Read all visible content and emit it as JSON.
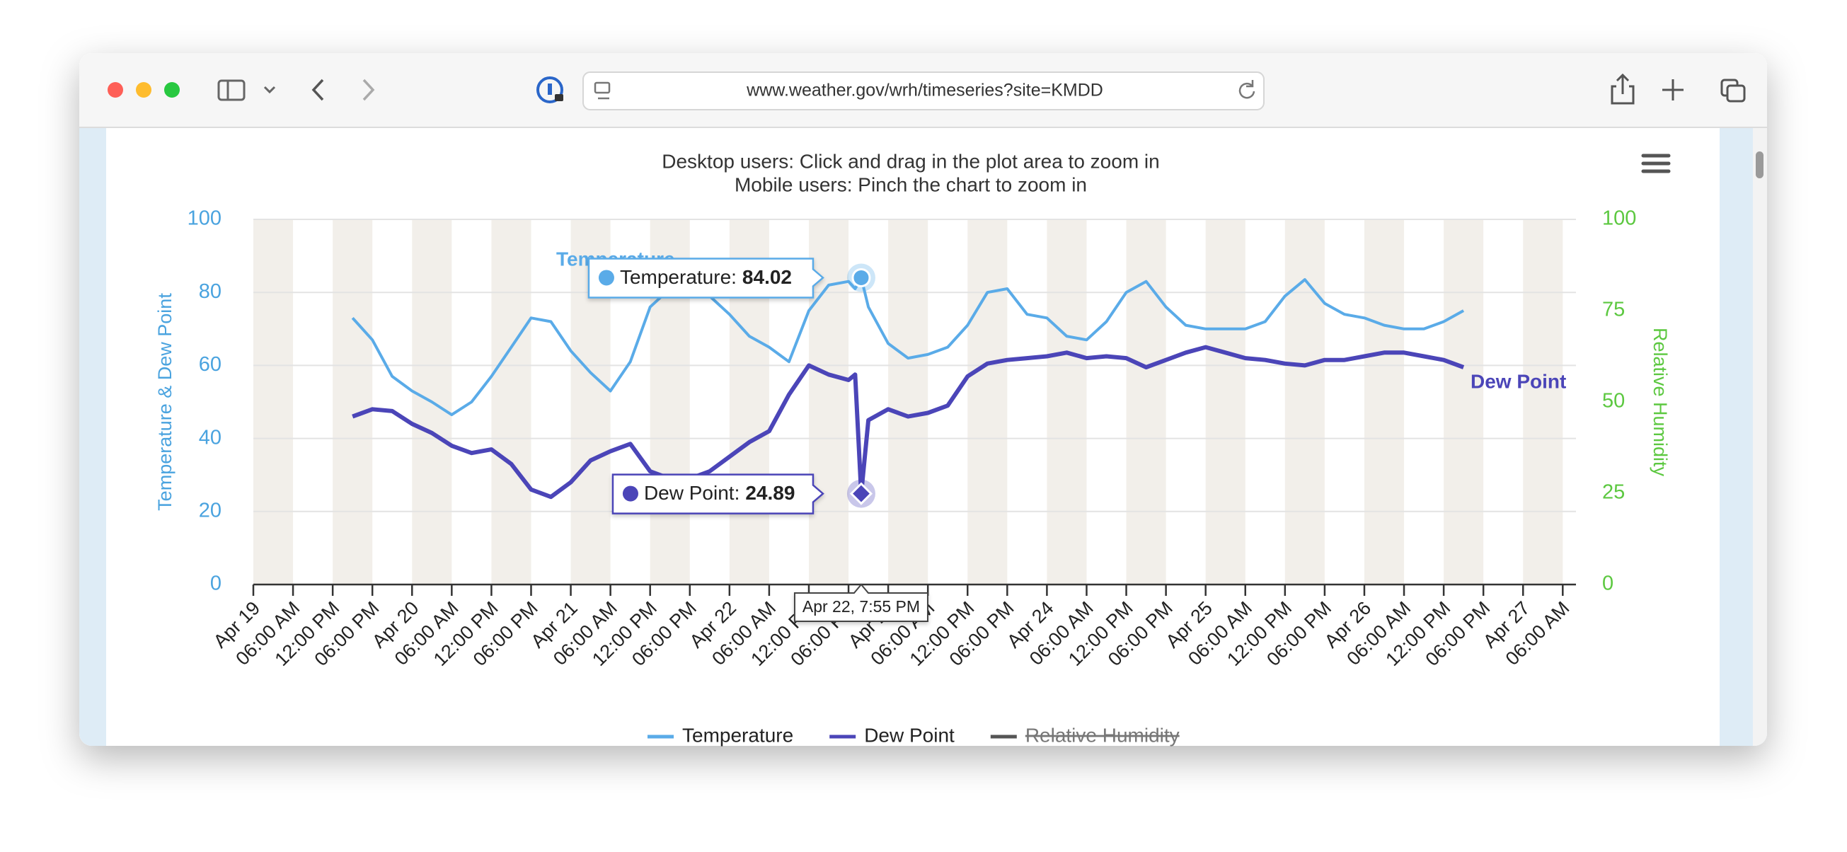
{
  "browser": {
    "url": "www.weather.gov/wrh/timeseries?site=KMDD"
  },
  "chart_data": {
    "type": "line",
    "subtitle": [
      "Desktop users: Click and drag in the plot area to zoom in",
      "Mobile users: Pinch the chart to zoom in"
    ],
    "ylabel": "Temperature & Dew Point",
    "y2label": "Relative Humidity",
    "xlim": [
      "Apr 19, 12:00 AM",
      "Apr 27, 8:00 AM"
    ],
    "ylim": [
      0,
      100
    ],
    "yticks": [
      0,
      20,
      40,
      60,
      80,
      100
    ],
    "y2lim": [
      0,
      100
    ],
    "y2ticks": [
      0,
      25,
      50,
      75,
      100
    ],
    "grid": true,
    "xticks": [
      {
        "value": "Apr 19, 12:00 AM",
        "label": "Apr 19"
      },
      {
        "value": "Apr 19, 6:00 AM",
        "label": "06:00 AM"
      },
      {
        "value": "Apr 19, 12:00 PM",
        "label": "12:00 PM"
      },
      {
        "value": "Apr 19, 6:00 PM",
        "label": "06:00 PM"
      },
      {
        "value": "Apr 20, 12:00 AM",
        "label": "Apr 20"
      },
      {
        "value": "Apr 20, 6:00 AM",
        "label": "06:00 AM"
      },
      {
        "value": "Apr 20, 12:00 PM",
        "label": "12:00 PM"
      },
      {
        "value": "Apr 20, 6:00 PM",
        "label": "06:00 PM"
      },
      {
        "value": "Apr 21, 12:00 AM",
        "label": "Apr 21"
      },
      {
        "value": "Apr 21, 6:00 AM",
        "label": "06:00 AM"
      },
      {
        "value": "Apr 21, 12:00 PM",
        "label": "12:00 PM"
      },
      {
        "value": "Apr 21, 6:00 PM",
        "label": "06:00 PM"
      },
      {
        "value": "Apr 22, 12:00 AM",
        "label": "Apr 22"
      },
      {
        "value": "Apr 22, 6:00 AM",
        "label": "06:00 AM"
      },
      {
        "value": "Apr 22, 12:00 PM",
        "label": "12:00 PM"
      },
      {
        "value": "Apr 22, 6:00 PM",
        "label": "06:00 PM"
      },
      {
        "value": "Apr 23, 12:00 AM",
        "label": "Apr 23"
      },
      {
        "value": "Apr 23, 6:00 AM",
        "label": "06:00 AM"
      },
      {
        "value": "Apr 23, 12:00 PM",
        "label": "12:00 PM"
      },
      {
        "value": "Apr 23, 6:00 PM",
        "label": "06:00 PM"
      },
      {
        "value": "Apr 24, 12:00 AM",
        "label": "Apr 24"
      },
      {
        "value": "Apr 24, 6:00 AM",
        "label": "06:00 AM"
      },
      {
        "value": "Apr 24, 12:00 PM",
        "label": "12:00 PM"
      },
      {
        "value": "Apr 24, 6:00 PM",
        "label": "06:00 PM"
      },
      {
        "value": "Apr 25, 12:00 AM",
        "label": "Apr 25"
      },
      {
        "value": "Apr 25, 6:00 AM",
        "label": "06:00 AM"
      },
      {
        "value": "Apr 25, 12:00 PM",
        "label": "12:00 PM"
      },
      {
        "value": "Apr 25, 6:00 PM",
        "label": "06:00 PM"
      },
      {
        "value": "Apr 26, 12:00 AM",
        "label": "Apr 26"
      },
      {
        "value": "Apr 26, 6:00 AM",
        "label": "06:00 AM"
      },
      {
        "value": "Apr 26, 12:00 PM",
        "label": "12:00 PM"
      },
      {
        "value": "Apr 26, 6:00 PM",
        "label": "06:00 PM"
      },
      {
        "value": "Apr 27, 12:00 AM",
        "label": "Apr 27"
      },
      {
        "value": "Apr 27, 6:00 AM",
        "label": "06:00 AM"
      }
    ],
    "x": [
      "Apr 19, 3:00 PM",
      "Apr 19, 6:00 PM",
      "Apr 19, 9:00 PM",
      "Apr 20, 12:00 AM",
      "Apr 20, 3:00 AM",
      "Apr 20, 6:00 AM",
      "Apr 20, 9:00 AM",
      "Apr 20, 12:00 PM",
      "Apr 20, 3:00 PM",
      "Apr 20, 6:00 PM",
      "Apr 20, 9:00 PM",
      "Apr 21, 12:00 AM",
      "Apr 21, 3:00 AM",
      "Apr 21, 6:00 AM",
      "Apr 21, 9:00 AM",
      "Apr 21, 12:00 PM",
      "Apr 21, 3:00 PM",
      "Apr 21, 6:00 PM",
      "Apr 21, 9:00 PM",
      "Apr 22, 12:00 AM",
      "Apr 22, 3:00 AM",
      "Apr 22, 6:00 AM",
      "Apr 22, 9:00 AM",
      "Apr 22, 12:00 PM",
      "Apr 22, 3:00 PM",
      "Apr 22, 6:00 PM",
      "Apr 22, 7:00 PM",
      "Apr 22, 7:55 PM",
      "Apr 22, 9:00 PM",
      "Apr 23, 12:00 AM",
      "Apr 23, 3:00 AM",
      "Apr 23, 6:00 AM",
      "Apr 23, 9:00 AM",
      "Apr 23, 12:00 PM",
      "Apr 23, 3:00 PM",
      "Apr 23, 6:00 PM",
      "Apr 23, 9:00 PM",
      "Apr 24, 12:00 AM",
      "Apr 24, 3:00 AM",
      "Apr 24, 6:00 AM",
      "Apr 24, 9:00 AM",
      "Apr 24, 12:00 PM",
      "Apr 24, 3:00 PM",
      "Apr 24, 6:00 PM",
      "Apr 24, 9:00 PM",
      "Apr 25, 12:00 AM",
      "Apr 25, 3:00 AM",
      "Apr 25, 6:00 AM",
      "Apr 25, 9:00 AM",
      "Apr 25, 12:00 PM",
      "Apr 25, 3:00 PM",
      "Apr 25, 6:00 PM",
      "Apr 25, 9:00 PM",
      "Apr 26, 12:00 AM",
      "Apr 26, 3:00 AM",
      "Apr 26, 6:00 AM",
      "Apr 26, 9:00 AM",
      "Apr 26, 12:00 PM",
      "Apr 26, 3:00 PM"
    ],
    "series": [
      {
        "name": "Temperature",
        "color": "#5aabe8",
        "values": [
          73,
          67,
          57,
          53,
          50,
          46.5,
          50,
          57,
          65,
          73,
          72,
          64,
          58,
          53,
          61,
          76,
          81,
          82,
          79,
          74,
          68,
          65,
          61,
          75,
          82,
          83,
          81,
          84.02,
          76,
          66,
          62,
          63,
          65,
          71,
          80,
          81,
          74,
          73,
          68,
          67,
          72,
          80,
          83,
          76,
          71,
          70,
          70,
          70,
          72,
          79,
          83.5,
          77,
          74,
          73,
          71,
          70,
          70,
          72,
          75
        ]
      },
      {
        "name": "Dew Point",
        "color": "#4b45b8",
        "values": [
          46,
          48,
          47.5,
          44,
          41.5,
          38,
          36,
          37,
          33,
          26,
          24,
          28,
          34,
          36.5,
          38.5,
          31,
          29,
          29,
          31,
          35,
          39,
          42,
          52,
          60,
          57.5,
          56,
          57.5,
          24.89,
          45,
          48,
          46,
          47,
          49,
          57,
          60.5,
          61.5,
          62,
          62.5,
          63.5,
          62,
          62.5,
          62,
          59.5,
          61.5,
          63.5,
          65,
          63.5,
          62,
          61.5,
          60.5,
          60,
          61.5,
          61.5,
          62.5,
          63.5,
          63.5,
          62.5,
          61.5,
          59.5
        ]
      },
      {
        "name": "Relative Humidity",
        "color": "#555555",
        "axis": "y2",
        "visible": false
      }
    ],
    "tooltip": {
      "x": "Apr 22, 7:55 PM",
      "labels": [
        "Temperature:",
        "Dew Point:"
      ]
    },
    "ylabel_color": "#4aa3df",
    "y2label_color": "#5cc840"
  }
}
